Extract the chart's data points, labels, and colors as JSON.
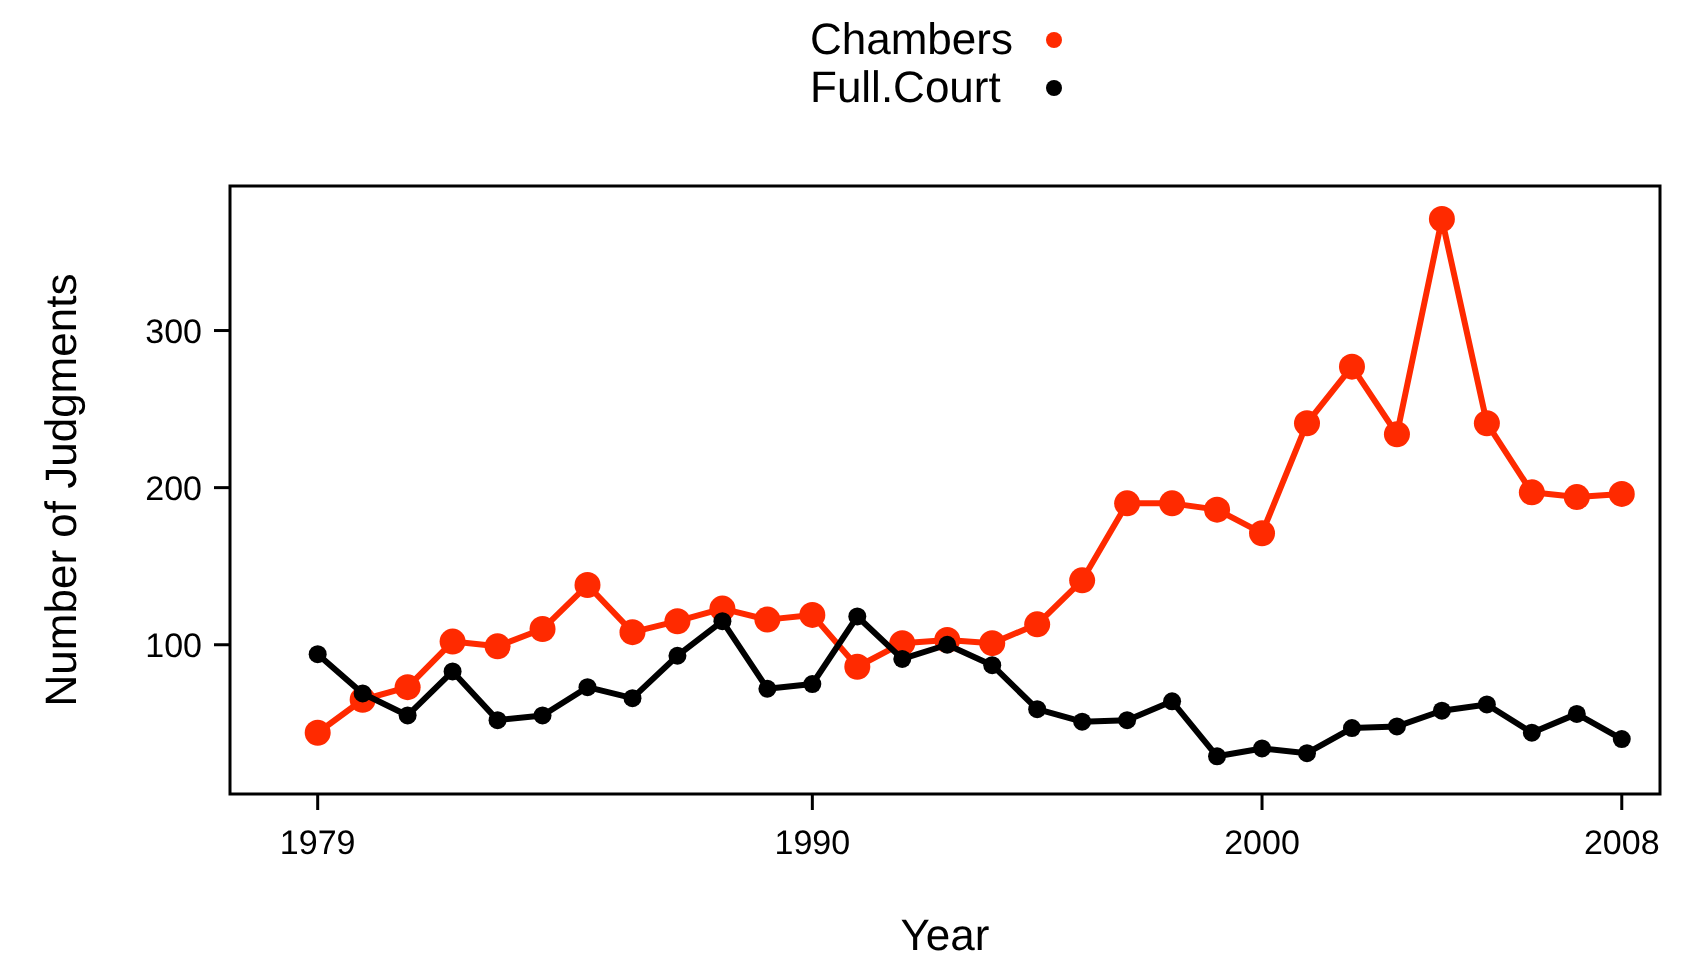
{
  "chart_data": {
    "type": "line",
    "xlabel": "Year",
    "ylabel": "Number of Judgments",
    "x": [
      1979,
      1980,
      1981,
      1982,
      1983,
      1984,
      1985,
      1986,
      1987,
      1988,
      1989,
      1990,
      1991,
      1992,
      1993,
      1994,
      1995,
      1996,
      1997,
      1998,
      1999,
      2000,
      2001,
      2002,
      2003,
      2004,
      2005,
      2006,
      2007,
      2008
    ],
    "series": [
      {
        "name": "Chambers",
        "color": "#ff2a00",
        "values": [
          44,
          65,
          73,
          102,
          99,
          110,
          138,
          108,
          115,
          123,
          116,
          119,
          86,
          101,
          103,
          101,
          113,
          141,
          190,
          190,
          186,
          171,
          241,
          277,
          234,
          371,
          241,
          197,
          194,
          196
        ]
      },
      {
        "name": "Full.Court",
        "color": "#000000",
        "values": [
          94,
          69,
          55,
          83,
          52,
          55,
          73,
          66,
          93,
          115,
          72,
          75,
          118,
          91,
          100,
          87,
          59,
          51,
          52,
          64,
          29,
          34,
          31,
          47,
          48,
          58,
          62,
          44,
          56,
          40
        ]
      }
    ],
    "xlim": [
      1977.05,
      2008.85
    ],
    "ylim": [
      5,
      392
    ],
    "xticks": [
      1979,
      1990,
      2000,
      2008
    ],
    "yticks": [
      100,
      200,
      300
    ],
    "grid": false,
    "legend": "top",
    "marker": "circle",
    "line_style": "solid"
  }
}
